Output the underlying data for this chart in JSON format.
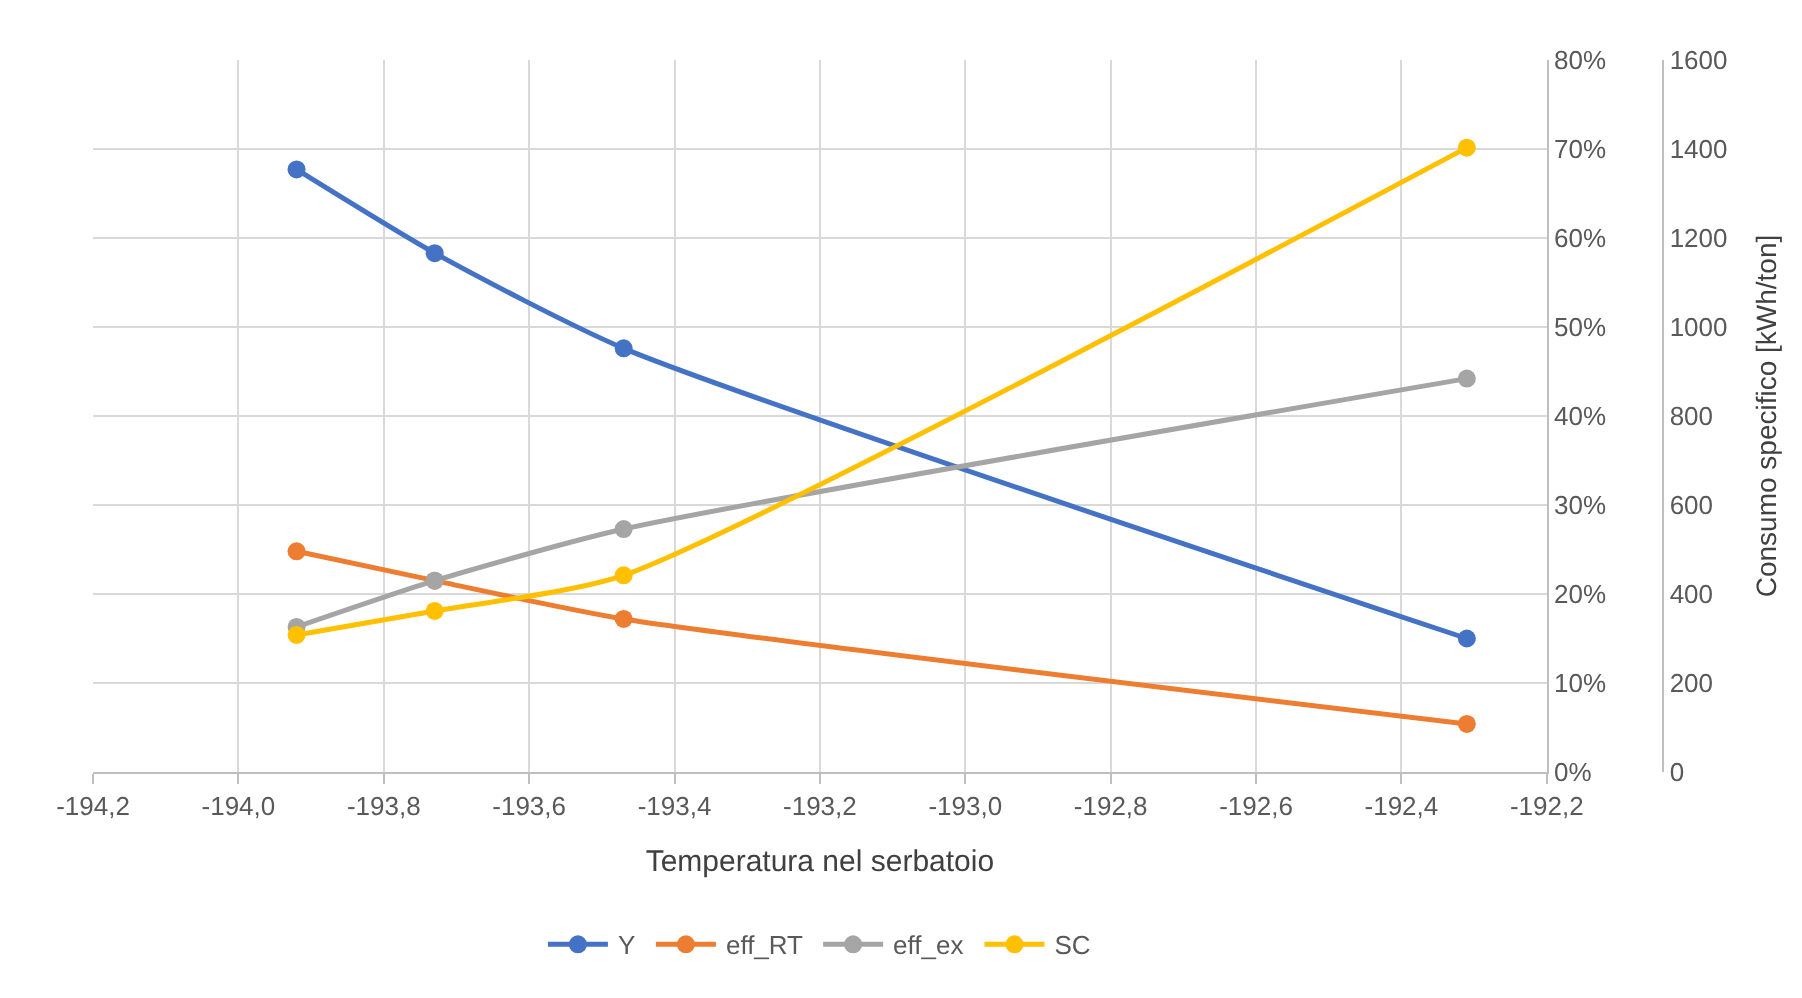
{
  "chart_data": {
    "type": "line",
    "xlabel": "Temperatura nel serbatoio",
    "y2label": "Consumo specifico [kWh/ton]",
    "x": [
      -193.92,
      -193.73,
      -193.47,
      -192.31
    ],
    "series": [
      {
        "name": "Y",
        "color": "#4472c4",
        "values": [
          0.677,
          0.583,
          0.476,
          0.15
        ]
      },
      {
        "name": "eff_RT",
        "color": "#ed7d31",
        "values": [
          0.248,
          0.215,
          0.172,
          0.054
        ]
      },
      {
        "name": "eff_ex",
        "color": "#a5a5a5",
        "values": [
          0.163,
          0.215,
          0.273,
          0.442
        ]
      },
      {
        "name": "SC",
        "color": "#ffc000",
        "values": [
          308,
          362,
          442,
          1403
        ],
        "axis": "y2"
      }
    ],
    "xlim": [
      -194.2,
      -192.2
    ],
    "xticks": [
      {
        "value": -194.2,
        "label": "-194,2"
      },
      {
        "value": -194.0,
        "label": "-194,0"
      },
      {
        "value": -193.8,
        "label": "-193,8"
      },
      {
        "value": -193.6,
        "label": "-193,6"
      },
      {
        "value": -193.4,
        "label": "-193,4"
      },
      {
        "value": -193.2,
        "label": "-193,2"
      },
      {
        "value": -193.0,
        "label": "-193,0"
      },
      {
        "value": -192.8,
        "label": "-192,8"
      },
      {
        "value": -192.6,
        "label": "-192,6"
      },
      {
        "value": -192.4,
        "label": "-192,4"
      },
      {
        "value": -192.2,
        "label": "-192,2"
      }
    ],
    "ylim": [
      0,
      0.8
    ],
    "yticks": [
      {
        "value": 0,
        "label": "0%"
      },
      {
        "value": 0.1,
        "label": "10%"
      },
      {
        "value": 0.2,
        "label": "20%"
      },
      {
        "value": 0.3,
        "label": "30%"
      },
      {
        "value": 0.4,
        "label": "40%"
      },
      {
        "value": 0.5,
        "label": "50%"
      },
      {
        "value": 0.6,
        "label": "60%"
      },
      {
        "value": 0.7,
        "label": "70%"
      },
      {
        "value": 0.8,
        "label": "80%"
      }
    ],
    "y2lim": [
      0,
      1600
    ],
    "y2ticks": [
      0,
      200,
      400,
      600,
      800,
      1000,
      1200,
      1400,
      1600
    ],
    "grid": true,
    "legend": "bottom",
    "marker": "circle",
    "line_style": "solid"
  }
}
